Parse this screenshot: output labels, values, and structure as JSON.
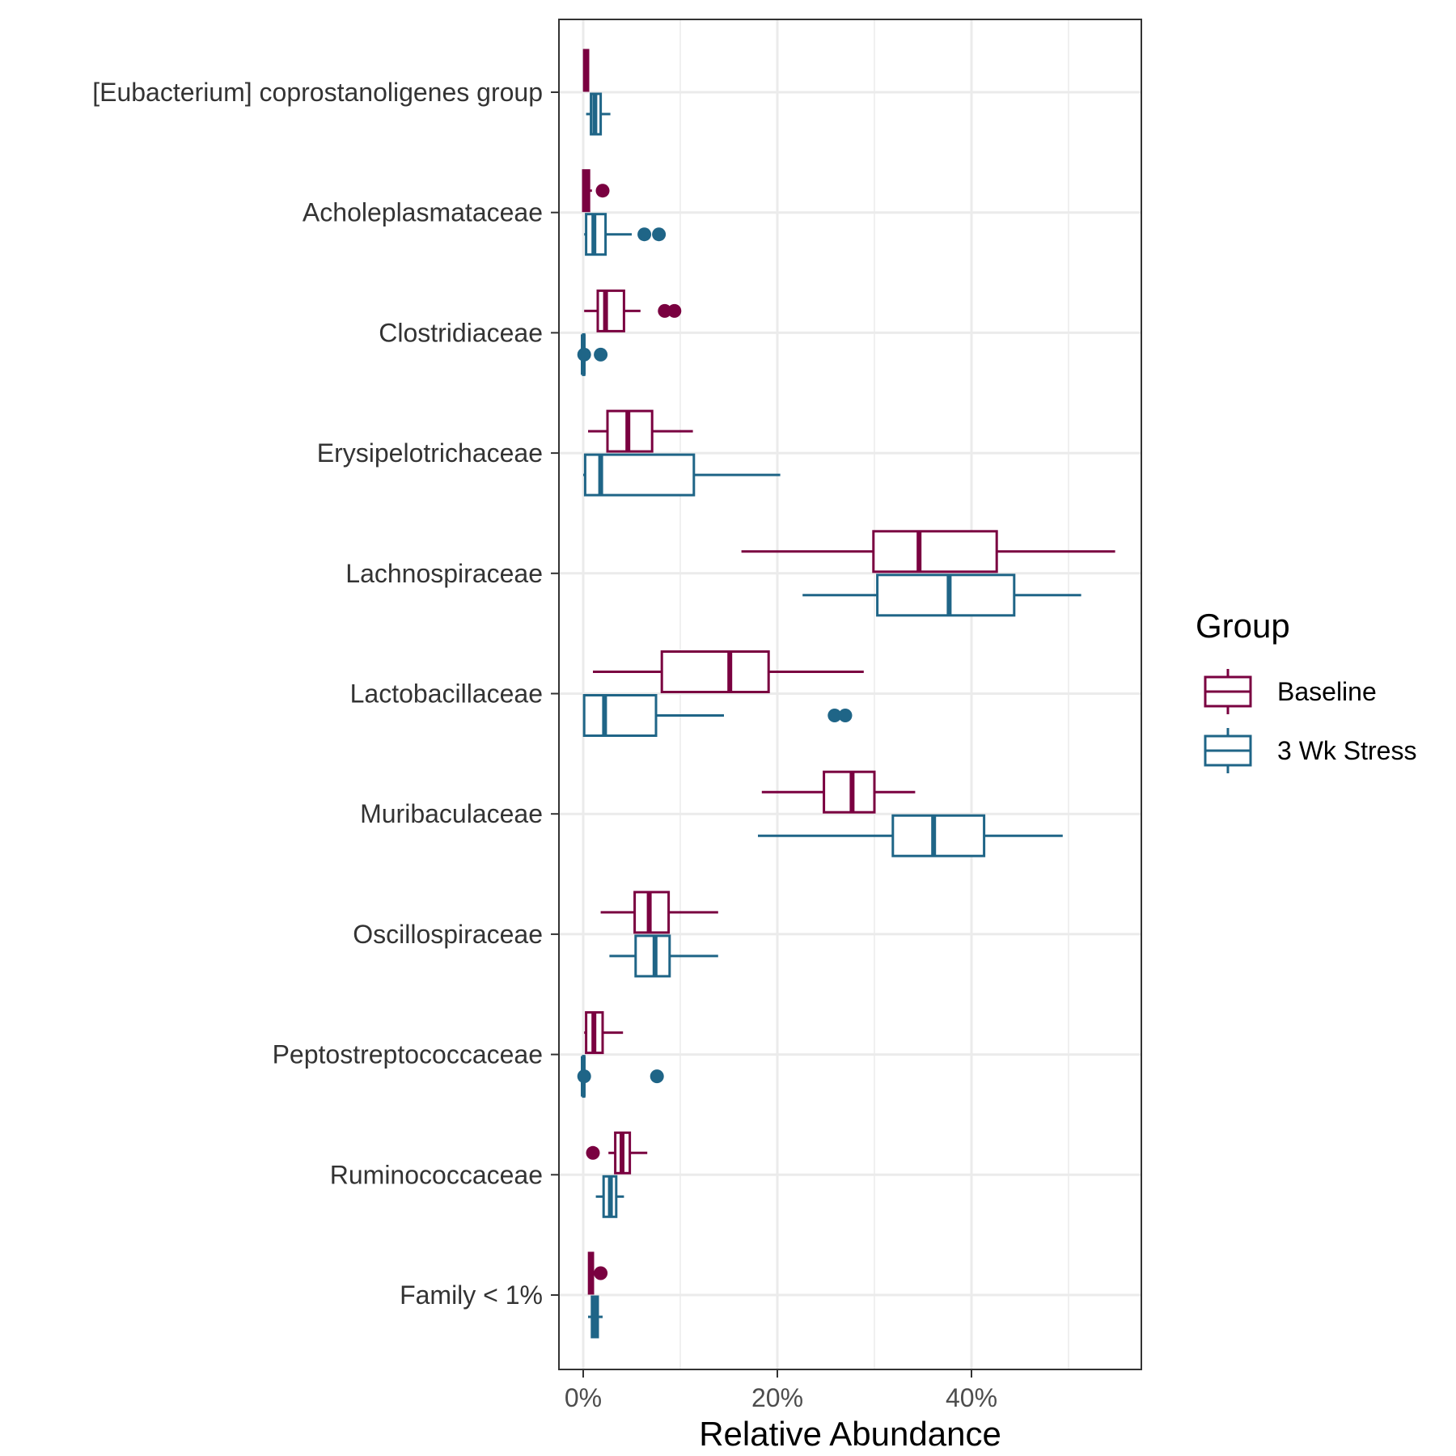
{
  "chart_data": {
    "type": "boxplot",
    "orientation": "horizontal",
    "xlabel": "Relative Abundance",
    "ylabel": "",
    "xlim": [
      -2.5,
      57.5
    ],
    "xticks": [
      0,
      20,
      40
    ],
    "xtick_labels": [
      "0%",
      "20%",
      "40%"
    ],
    "minor_gridlines": [
      10,
      30,
      50
    ],
    "grid": true,
    "legend": {
      "title": "Group",
      "position": "right"
    },
    "categories": [
      "[Eubacterium] coprostanoligenes group",
      "Acholeplasmataceae",
      "Clostridiaceae",
      "Erysipelotrichaceae",
      "Lachnospiraceae",
      "Lactobacillaceae",
      "Muribaculaceae",
      "Oscillospiraceae",
      "Peptostreptococcaceae",
      "Ruminococcaceae",
      "Family < 1%"
    ],
    "series": [
      {
        "name": "Baseline",
        "color": "#7a0140",
        "boxes": [
          {
            "whisker_low": 0.1,
            "q1": 0.1,
            "median": 0.3,
            "q3": 0.5,
            "whisker_high": 0.6,
            "outliers": []
          },
          {
            "whisker_low": 0.0,
            "q1": 0.0,
            "median": 0.3,
            "q3": 0.6,
            "whisker_high": 0.9,
            "outliers": [
              2.0
            ]
          },
          {
            "whisker_low": 0.1,
            "q1": 1.5,
            "median": 2.3,
            "q3": 4.2,
            "whisker_high": 5.9,
            "outliers": [
              8.4,
              9.4
            ]
          },
          {
            "whisker_low": 0.5,
            "q1": 2.5,
            "median": 4.6,
            "q3": 7.1,
            "whisker_high": 11.3,
            "outliers": []
          },
          {
            "whisker_low": 16.3,
            "q1": 29.9,
            "median": 34.6,
            "q3": 42.6,
            "whisker_high": 54.8,
            "outliers": []
          },
          {
            "whisker_low": 1.0,
            "q1": 8.1,
            "median": 15.1,
            "q3": 19.1,
            "whisker_high": 28.9,
            "outliers": []
          },
          {
            "whisker_low": 18.4,
            "q1": 24.8,
            "median": 27.7,
            "q3": 30.0,
            "whisker_high": 34.2,
            "outliers": []
          },
          {
            "whisker_low": 1.8,
            "q1": 5.3,
            "median": 6.8,
            "q3": 8.8,
            "whisker_high": 13.9,
            "outliers": []
          },
          {
            "whisker_low": 0.1,
            "q1": 0.3,
            "median": 1.1,
            "q3": 2.0,
            "whisker_high": 4.1,
            "outliers": []
          },
          {
            "whisker_low": 2.6,
            "q1": 3.3,
            "median": 4.0,
            "q3": 4.8,
            "whisker_high": 6.6,
            "outliers": [
              1.0
            ]
          },
          {
            "whisker_low": 0.6,
            "q1": 0.6,
            "median": 0.8,
            "q3": 1.0,
            "whisker_high": 1.1,
            "outliers": [
              1.8
            ]
          }
        ]
      },
      {
        "name": "3 Wk Stress",
        "color": "#1f6587",
        "boxes": [
          {
            "whisker_low": 0.3,
            "q1": 0.8,
            "median": 1.2,
            "q3": 1.8,
            "whisker_high": 2.8,
            "outliers": []
          },
          {
            "whisker_low": 0.1,
            "q1": 0.3,
            "median": 1.1,
            "q3": 2.3,
            "whisker_high": 5.0,
            "outliers": [
              6.3,
              7.8
            ]
          },
          {
            "whisker_low": 0.0,
            "q1": 0.0,
            "median": 0.0,
            "q3": 0.1,
            "whisker_high": 0.2,
            "outliers": [
              0.1,
              1.8
            ]
          },
          {
            "whisker_low": 0.0,
            "q1": 0.2,
            "median": 1.8,
            "q3": 11.4,
            "whisker_high": 20.3,
            "outliers": []
          },
          {
            "whisker_low": 22.6,
            "q1": 30.3,
            "median": 37.7,
            "q3": 44.4,
            "whisker_high": 51.3,
            "outliers": []
          },
          {
            "whisker_low": 0.0,
            "q1": 0.1,
            "median": 2.2,
            "q3": 7.5,
            "whisker_high": 14.5,
            "outliers": [
              25.9,
              27.0
            ]
          },
          {
            "whisker_low": 18.0,
            "q1": 31.9,
            "median": 36.1,
            "q3": 41.3,
            "whisker_high": 49.4,
            "outliers": []
          },
          {
            "whisker_low": 2.7,
            "q1": 5.4,
            "median": 7.4,
            "q3": 8.9,
            "whisker_high": 13.9,
            "outliers": []
          },
          {
            "whisker_low": 0.0,
            "q1": 0.0,
            "median": 0.0,
            "q3": 0.1,
            "whisker_high": 0.2,
            "outliers": [
              0.1,
              7.6
            ]
          },
          {
            "whisker_low": 1.3,
            "q1": 2.1,
            "median": 2.8,
            "q3": 3.4,
            "whisker_high": 4.2,
            "outliers": []
          },
          {
            "whisker_low": 0.5,
            "q1": 0.9,
            "median": 1.2,
            "q3": 1.5,
            "whisker_high": 2.0,
            "outliers": []
          }
        ]
      }
    ]
  }
}
